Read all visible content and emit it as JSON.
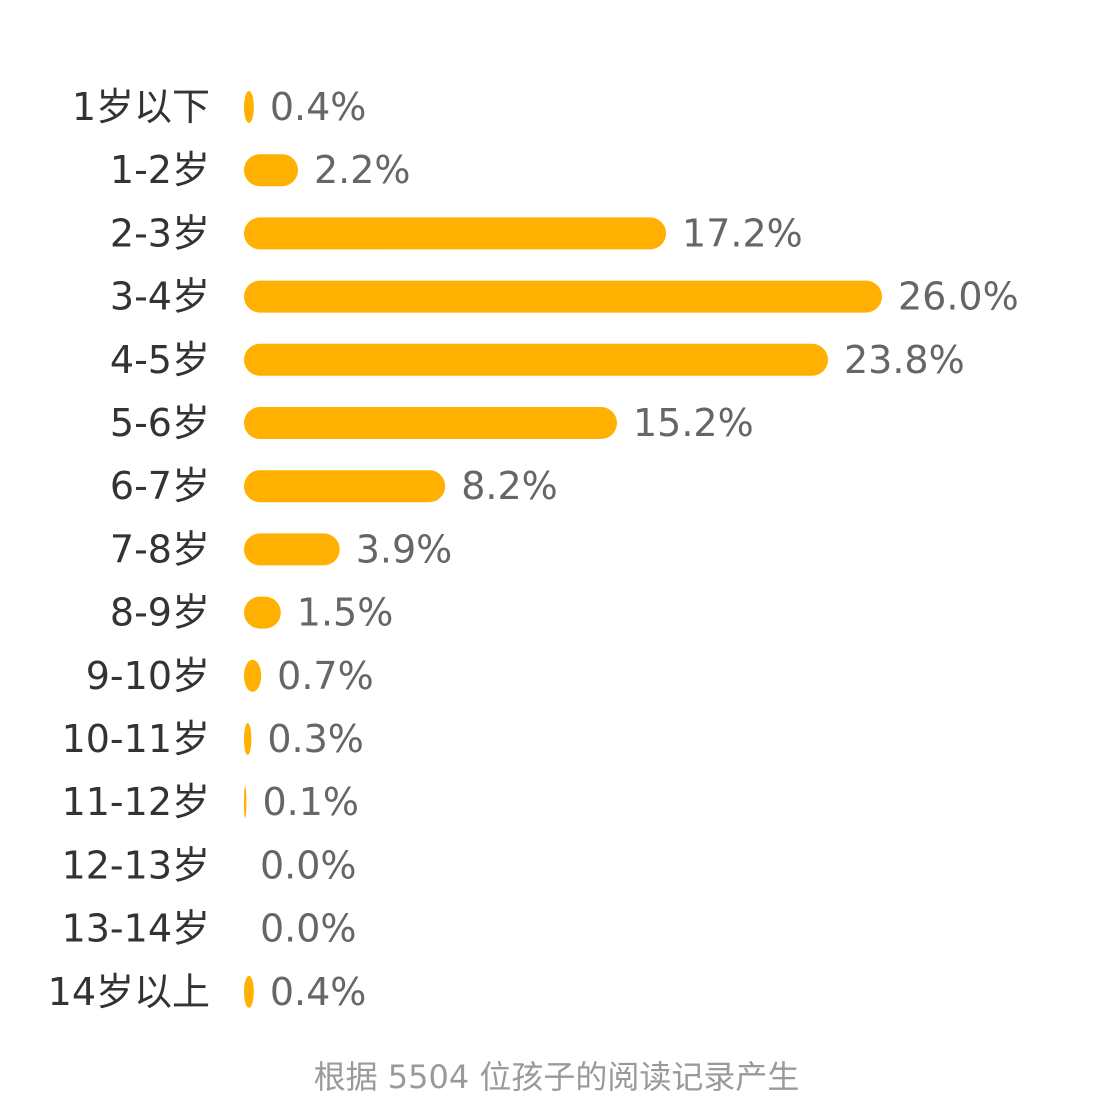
{
  "chart_data": {
    "type": "bar",
    "orientation": "horizontal",
    "categories": [
      "1岁以下",
      "1-2岁",
      "2-3岁",
      "3-4岁",
      "4-5岁",
      "5-6岁",
      "6-7岁",
      "7-8岁",
      "8-9岁",
      "9-10岁",
      "10-11岁",
      "11-12岁",
      "12-13岁",
      "13-14岁",
      "14岁以上"
    ],
    "values": [
      0.4,
      2.2,
      17.2,
      26.0,
      23.8,
      15.2,
      8.2,
      3.9,
      1.5,
      0.7,
      0.3,
      0.1,
      0.0,
      0.0,
      0.4
    ],
    "value_labels": [
      "0.4%",
      "2.2%",
      "17.2%",
      "26.0%",
      "23.8%",
      "15.2%",
      "8.2%",
      "3.9%",
      "1.5%",
      "0.7%",
      "0.3%",
      "0.1%",
      "0.0%",
      "0.0%",
      "0.4%"
    ],
    "unit": "%",
    "xlim": [
      0,
      26.0
    ],
    "grid": false,
    "legend": "none",
    "bar_color": "#FFB000",
    "footnote": "根据 5504 位孩子的阅读记录产生"
  }
}
